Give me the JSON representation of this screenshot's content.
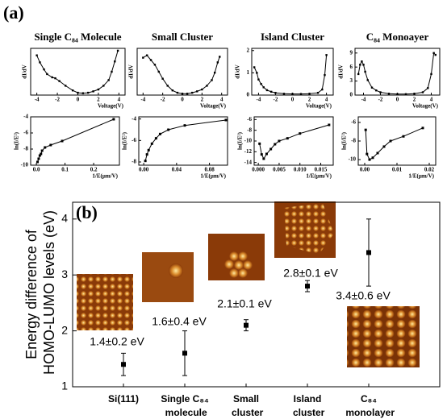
{
  "chart_data": [
    {
      "type": "line",
      "panel": "(a)",
      "title": "Single C₈₄ Molecule",
      "x_label": "Voltage(V)",
      "y_label": "dI/dV",
      "x": [
        -4,
        -3.7,
        -3.3,
        -3,
        -2.5,
        -2.2,
        -1.8,
        -1.2,
        -0.5,
        0,
        0.5,
        1,
        1.5,
        2,
        2.5,
        3,
        3.3,
        3.6,
        3.9
      ],
      "values": [
        0.85,
        0.7,
        0.55,
        0.45,
        0.38,
        0.36,
        0.3,
        0.2,
        0.1,
        0.05,
        0.04,
        0.05,
        0.08,
        0.12,
        0.2,
        0.32,
        0.5,
        0.72,
        0.95
      ],
      "xlim": [
        -4.6,
        4.6
      ],
      "ylim": [
        0,
        1
      ],
      "xticks": [
        -4,
        -2,
        0,
        2,
        4
      ]
    },
    {
      "type": "line",
      "title": "Small Cluster",
      "x_label": "Voltage(V)",
      "y_label": "dI/dV",
      "x": [
        -4,
        -3.6,
        -3.2,
        -2.8,
        -2.4,
        -2,
        -1.5,
        -1,
        -0.5,
        0,
        0.5,
        1,
        1.5,
        2,
        2.5,
        3,
        3.3,
        3.6,
        3.8
      ],
      "values": [
        0.8,
        0.85,
        0.75,
        0.65,
        0.5,
        0.35,
        0.2,
        0.1,
        0.05,
        0.03,
        0.03,
        0.05,
        0.08,
        0.12,
        0.2,
        0.32,
        0.48,
        0.7,
        0.82
      ],
      "xlim": [
        -4.6,
        4.6
      ],
      "ylim": [
        0,
        1
      ],
      "xticks": [
        -4,
        -2,
        0,
        2,
        4
      ]
    },
    {
      "type": "line",
      "title": "Island Cluster",
      "x_label": "Voltage(V)",
      "y_label": "dI/dV",
      "x": [
        -4.5,
        -4.2,
        -4,
        -3.7,
        -3.4,
        -3,
        -2.5,
        -2,
        -1,
        0,
        1,
        2,
        3,
        3.5,
        3.8,
        4
      ],
      "values": [
        1.25,
        1.0,
        0.7,
        0.5,
        0.35,
        0.22,
        0.15,
        0.1,
        0.06,
        0.05,
        0.05,
        0.06,
        0.1,
        0.25,
        0.9,
        1.8
      ],
      "xlim": [
        -4.8,
        4.8
      ],
      "ylim": [
        0,
        2.1
      ],
      "xticks": [
        -4,
        -2,
        0,
        2,
        4
      ],
      "yticks": [
        0,
        1,
        2
      ]
    },
    {
      "type": "line",
      "title": "C₈₄ Monoayer",
      "x_label": "Voltage(V)",
      "y_label": "dI/dV",
      "x": [
        -4.6,
        -4.4,
        -4.2,
        -4,
        -3.8,
        -3.5,
        -3,
        -2.5,
        -2,
        -1,
        0,
        1,
        2,
        3,
        3.6,
        4,
        4.3,
        4.5
      ],
      "values": [
        4.5,
        6.5,
        7.2,
        6.5,
        5.0,
        3.2,
        1.6,
        1.0,
        0.6,
        0.3,
        0.2,
        0.2,
        0.3,
        0.6,
        1.5,
        4.5,
        9.0,
        8.6
      ],
      "xlim": [
        -5,
        5
      ],
      "ylim": [
        0,
        10
      ],
      "xticks": [
        -4,
        -2,
        0,
        2,
        4
      ],
      "yticks": [
        0,
        3,
        6,
        9
      ]
    },
    {
      "type": "scatter-line",
      "x_label": "1/E(μm/V)",
      "y_label": "ln(I/E²)",
      "x": [
        0.004,
        0.008,
        0.012,
        0.016,
        0.02,
        0.03,
        0.05,
        0.09,
        0.27
      ],
      "values": [
        -9.6,
        -9.2,
        -8.8,
        -8.6,
        -8.2,
        -7.8,
        -7.5,
        -7.0,
        -4.3
      ],
      "xlim": [
        -0.02,
        0.29
      ],
      "ylim": [
        -10,
        -4
      ],
      "xticks": [
        {
          "value": 0,
          "label": "0.0"
        },
        0.1,
        0.2
      ],
      "yticks": [
        -10,
        -8,
        -6,
        -4
      ]
    },
    {
      "type": "scatter-line",
      "x_label": "1/E(μm/V)",
      "y_label": "ln(I/E²)",
      "x": [
        0.002,
        0.004,
        0.006,
        0.01,
        0.015,
        0.02,
        0.03,
        0.05,
        0.1
      ],
      "values": [
        -7.9,
        -7.3,
        -6.9,
        -6.3,
        -5.8,
        -5.4,
        -5.0,
        -4.6,
        -4.1
      ],
      "xlim": [
        -0.006,
        0.102
      ],
      "ylim": [
        -8.3,
        -3.8
      ],
      "xticks": [
        {
          "value": 0,
          "label": "0.00"
        },
        0.04,
        0.08
      ],
      "yticks": [
        -8,
        -6,
        -4
      ]
    },
    {
      "type": "scatter-line",
      "x_label": "1/E(μm/V)",
      "y_label": "ln(I/E²)",
      "x": [
        0.0003,
        0.0008,
        0.0013,
        0.002,
        0.003,
        0.004,
        0.005,
        0.007,
        0.01,
        0.017
      ],
      "values": [
        -10.5,
        -12.5,
        -13.3,
        -12.4,
        -11.5,
        -10.6,
        -10.0,
        -9.5,
        -8.6,
        -7.0
      ],
      "xlim": [
        -0.001,
        0.018
      ],
      "ylim": [
        -14.5,
        -5.5
      ],
      "xticks": [
        {
          "value": 0,
          "label": "0.000"
        },
        {
          "value": 0.005,
          "label": "0.005"
        },
        {
          "value": 0.01,
          "label": "0.010"
        },
        {
          "value": 0.015,
          "label": "0.015"
        }
      ],
      "yticks": [
        -14,
        -12,
        -10,
        -8,
        -6
      ]
    },
    {
      "type": "scatter-line",
      "x_label": "1/E(μm/V)",
      "y_label": "ln(I/E²)",
      "x": [
        0.0003,
        0.0007,
        0.0015,
        0.0025,
        0.004,
        0.006,
        0.008,
        0.012,
        0.018
      ],
      "values": [
        -6.8,
        -9.4,
        -10.0,
        -9.8,
        -9.3,
        -8.6,
        -8.0,
        -7.5,
        -6.6
      ],
      "xlim": [
        -0.002,
        0.022
      ],
      "ylim": [
        -10.6,
        -5.4
      ],
      "xticks": [
        {
          "value": 0,
          "label": "0.00"
        },
        0.01,
        0.02
      ],
      "yticks": [
        -10,
        -8,
        -6
      ]
    },
    {
      "type": "errorbar",
      "panel": "(b)",
      "y_label": "Energy difference of HOMO-LUMO levels (eV)",
      "categories": [
        "Si(111)",
        "Single C₈₄ molecule",
        "Small cluster",
        "Island cluster",
        "C₈₄ monolayer"
      ],
      "values": [
        1.4,
        1.6,
        2.1,
        2.8,
        3.4
      ],
      "errors": [
        0.2,
        0.4,
        0.1,
        0.1,
        0.6
      ],
      "value_labels": [
        "1.4±0.2 eV",
        "1.6±0.4 eV",
        "2.1±0.1 eV",
        "2.8±0.1 eV",
        "3.4±0.6 eV"
      ],
      "ylim": [
        1,
        4.3
      ],
      "yticks": [
        1,
        2,
        3,
        4
      ]
    }
  ]
}
